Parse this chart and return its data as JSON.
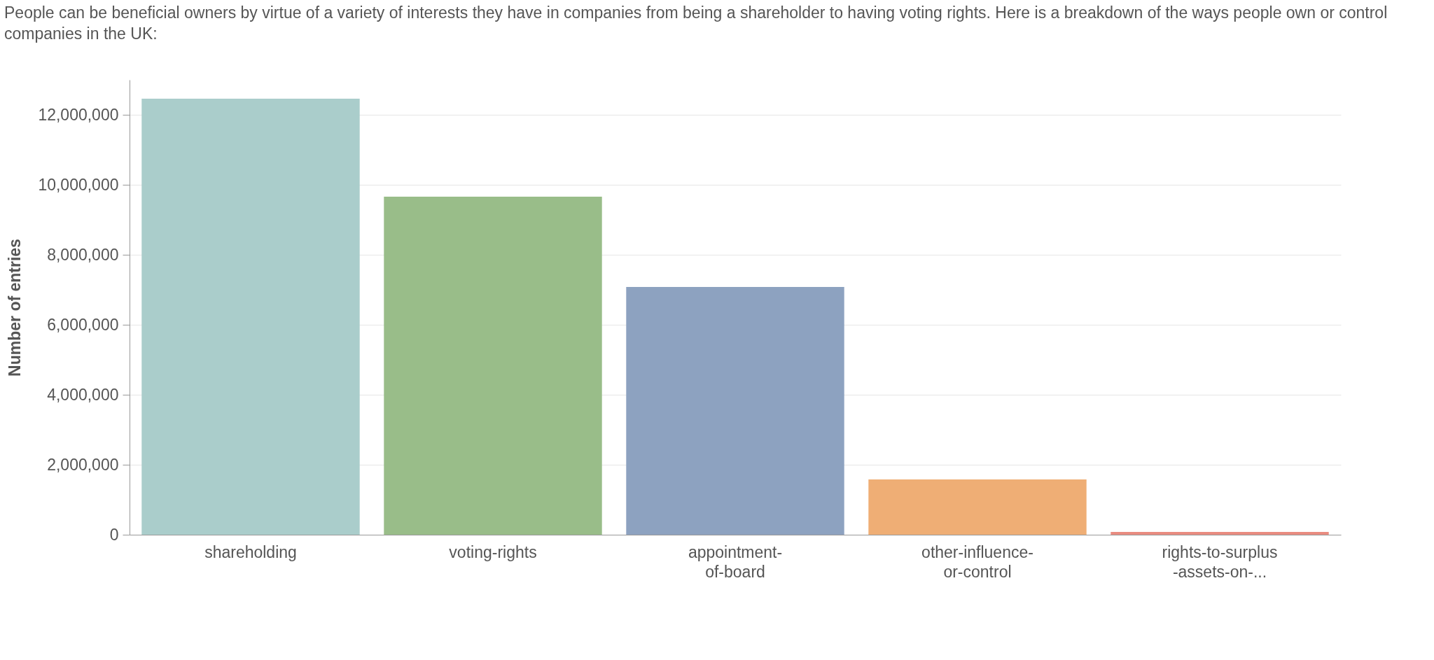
{
  "chart_data": {
    "type": "bar",
    "title": "People can be beneficial owners by virtue of a variety of interests they have in companies from being a shareholder to having voting rights. Here is a breakdown of the ways people own or control companies in the UK:",
    "ylabel": "Number of entries",
    "categories": [
      "shareholding",
      "voting-rights",
      "appointment-\nof-board",
      "other-influence-\nor-control",
      "rights-to-surplus\n-assets-on-..."
    ],
    "values": [
      12460000,
      9660000,
      7080000,
      1580000,
      80000
    ],
    "colors": [
      "#aacdcb",
      "#99bd89",
      "#8da2c0",
      "#efae75",
      "#e98c80"
    ],
    "ylim": [
      0,
      13000000
    ],
    "yticks": [
      {
        "value": 0,
        "label": "0"
      },
      {
        "value": 2000000,
        "label": "2,000,000"
      },
      {
        "value": 4000000,
        "label": "4,000,000"
      },
      {
        "value": 6000000,
        "label": "6,000,000"
      },
      {
        "value": 8000000,
        "label": "8,000,000"
      },
      {
        "value": 10000000,
        "label": "10,000,000"
      },
      {
        "value": 12000000,
        "label": "12,000,000"
      }
    ],
    "grid": "y"
  }
}
